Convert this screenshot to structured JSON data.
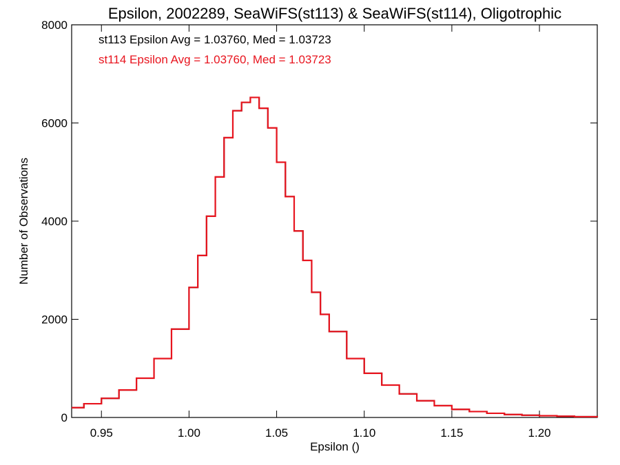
{
  "chart_data": {
    "type": "line",
    "title": "Epsilon, 2002289, SeaWiFS(st113) & SeaWiFS(st114), Oligotrophic",
    "xlabel": "Epsilon ()",
    "ylabel": "Number of Observations",
    "xlim": [
      0.933,
      1.233
    ],
    "ylim": [
      0,
      8000
    ],
    "x_ticks": [
      0.95,
      1.0,
      1.05,
      1.1,
      1.15,
      1.2
    ],
    "x_tick_labels": [
      "0.95",
      "1.00",
      "1.05",
      "1.10",
      "1.15",
      "1.20"
    ],
    "y_ticks": [
      0,
      2000,
      4000,
      6000,
      8000
    ],
    "y_tick_labels": [
      "0",
      "2000",
      "4000",
      "6000",
      "8000"
    ],
    "grid": false,
    "annotations": [
      {
        "text": "st113 Epsilon Avg = 1.03760, Med = 1.03723",
        "color": "#000000"
      },
      {
        "text": "st114 Epsilon Avg = 1.03760, Med = 1.03723",
        "color": "#e8141e"
      }
    ],
    "x": [
      0.933,
      0.94,
      0.95,
      0.96,
      0.97,
      0.98,
      0.99,
      1.0,
      1.005,
      1.01,
      1.015,
      1.02,
      1.025,
      1.03,
      1.035,
      1.04,
      1.045,
      1.05,
      1.055,
      1.06,
      1.065,
      1.07,
      1.075,
      1.08,
      1.09,
      1.1,
      1.11,
      1.12,
      1.13,
      1.14,
      1.15,
      1.16,
      1.17,
      1.18,
      1.19,
      1.2,
      1.21,
      1.22,
      1.233
    ],
    "series": [
      {
        "name": "st113",
        "color": "#000000",
        "values": [
          200,
          280,
          390,
          560,
          800,
          1200,
          1800,
          2650,
          3300,
          4100,
          4900,
          5700,
          6250,
          6420,
          6520,
          6300,
          5900,
          5200,
          4500,
          3800,
          3200,
          2550,
          2100,
          1750,
          1200,
          900,
          660,
          480,
          340,
          240,
          165,
          120,
          85,
          60,
          45,
          35,
          25,
          15,
          5
        ]
      },
      {
        "name": "st114",
        "color": "#e8141e",
        "values": [
          200,
          280,
          390,
          560,
          800,
          1200,
          1800,
          2650,
          3300,
          4100,
          4900,
          5700,
          6250,
          6420,
          6520,
          6300,
          5900,
          5200,
          4500,
          3800,
          3200,
          2550,
          2100,
          1750,
          1200,
          900,
          660,
          480,
          340,
          240,
          165,
          120,
          85,
          60,
          45,
          35,
          25,
          15,
          5
        ]
      }
    ]
  }
}
